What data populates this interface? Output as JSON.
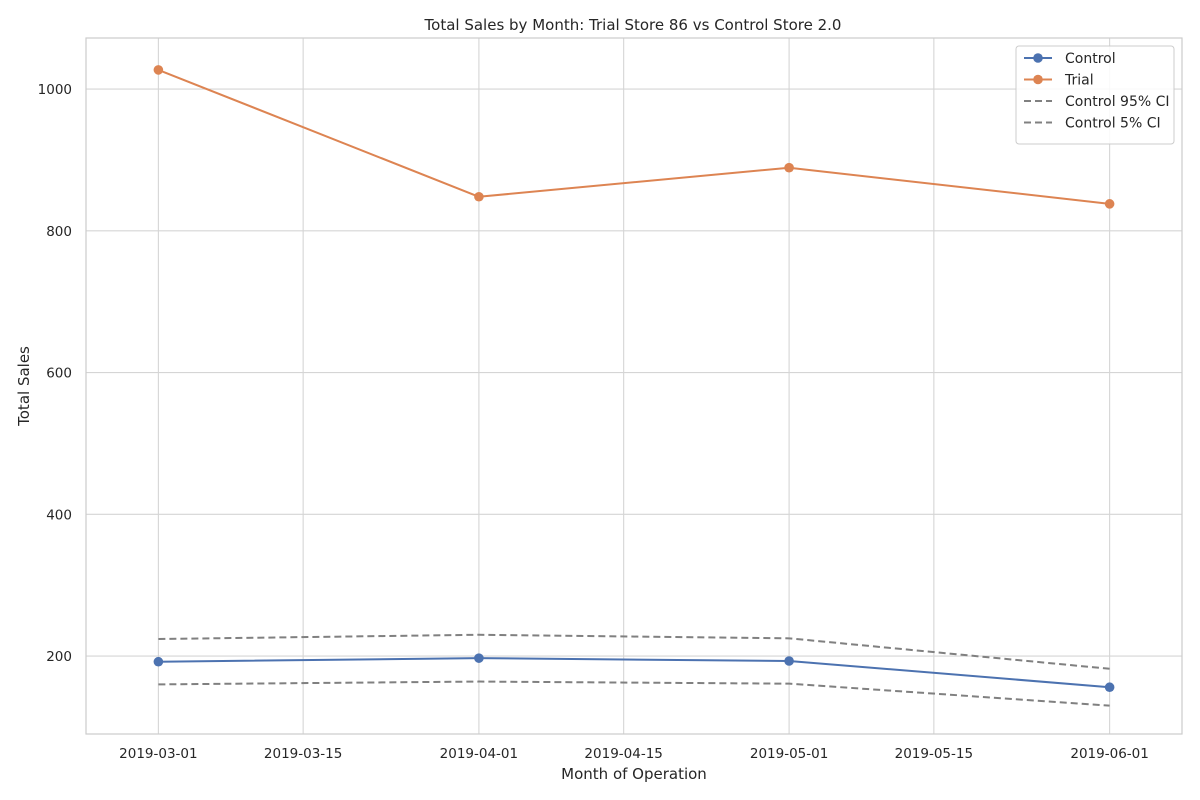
{
  "chart_data": {
    "type": "line",
    "title": "Total Sales by Month: Trial Store 86 vs Control Store 2.0",
    "xlabel": "Month of Operation",
    "ylabel": "Total Sales",
    "x_type": "date",
    "x_ticks": [
      "2019-03-01",
      "2019-03-15",
      "2019-04-01",
      "2019-04-15",
      "2019-05-01",
      "2019-05-15",
      "2019-06-01"
    ],
    "xlim": [
      "2019-02-22",
      "2019-06-08"
    ],
    "y_ticks": [
      200,
      400,
      600,
      800,
      1000
    ],
    "ylim": [
      90,
      1072
    ],
    "grid": true,
    "legend_position": "top-right",
    "x": [
      "2019-03-01",
      "2019-04-01",
      "2019-05-01",
      "2019-06-01"
    ],
    "series": [
      {
        "name": "Control",
        "values": [
          192,
          197,
          193,
          156
        ],
        "color": "#4c72b0",
        "style": "solid",
        "markers": true
      },
      {
        "name": "Trial",
        "values": [
          1027,
          848,
          889,
          838
        ],
        "color": "#dd8452",
        "style": "solid",
        "markers": true
      },
      {
        "name": "Control 95% CI",
        "values": [
          224,
          230,
          225,
          182
        ],
        "color": "#808080",
        "style": "dashed",
        "markers": false
      },
      {
        "name": "Control 5% CI",
        "values": [
          160,
          164,
          161,
          130
        ],
        "color": "#808080",
        "style": "dashed",
        "markers": false
      }
    ]
  }
}
